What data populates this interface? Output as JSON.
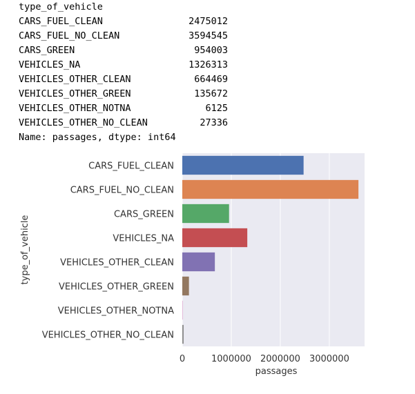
{
  "output": {
    "header": "type_of_vehicle",
    "rows": [
      {
        "key": "CARS_FUEL_CLEAN",
        "value": "2475012"
      },
      {
        "key": "CARS_FUEL_NO_CLEAN",
        "value": "3594545"
      },
      {
        "key": "CARS_GREEN",
        "value": "954003"
      },
      {
        "key": "VEHICLES_NA",
        "value": "1326313"
      },
      {
        "key": "VEHICLES_OTHER_CLEAN",
        "value": "664469"
      },
      {
        "key": "VEHICLES_OTHER_GREEN",
        "value": "135672"
      },
      {
        "key": "VEHICLES_OTHER_NOTNA",
        "value": "6125"
      },
      {
        "key": "VEHICLES_OTHER_NO_CLEAN",
        "value": "27336"
      }
    ],
    "footer": "Name: passages, dtype: int64"
  },
  "chart_data": {
    "type": "bar",
    "orientation": "horizontal",
    "categories": [
      "CARS_FUEL_CLEAN",
      "CARS_FUEL_NO_CLEAN",
      "CARS_GREEN",
      "VEHICLES_NA",
      "VEHICLES_OTHER_CLEAN",
      "VEHICLES_OTHER_GREEN",
      "VEHICLES_OTHER_NOTNA",
      "VEHICLES_OTHER_NO_CLEAN"
    ],
    "values": [
      2475012,
      3594545,
      954003,
      1326313,
      664469,
      135672,
      6125,
      27336
    ],
    "colors": [
      "#4c72b0",
      "#dd8452",
      "#55a868",
      "#c44e52",
      "#8172b3",
      "#937860",
      "#da8bc3",
      "#8c8c8c"
    ],
    "xlabel": "passages",
    "ylabel": "type_of_vehicle",
    "xlim": [
      0,
      3720000
    ],
    "xticks": [
      0,
      1000000,
      2000000,
      3000000
    ],
    "xtick_labels": [
      "0",
      "1000000",
      "2000000",
      "3000000"
    ],
    "grid": true,
    "background": "#eaeaf2"
  }
}
